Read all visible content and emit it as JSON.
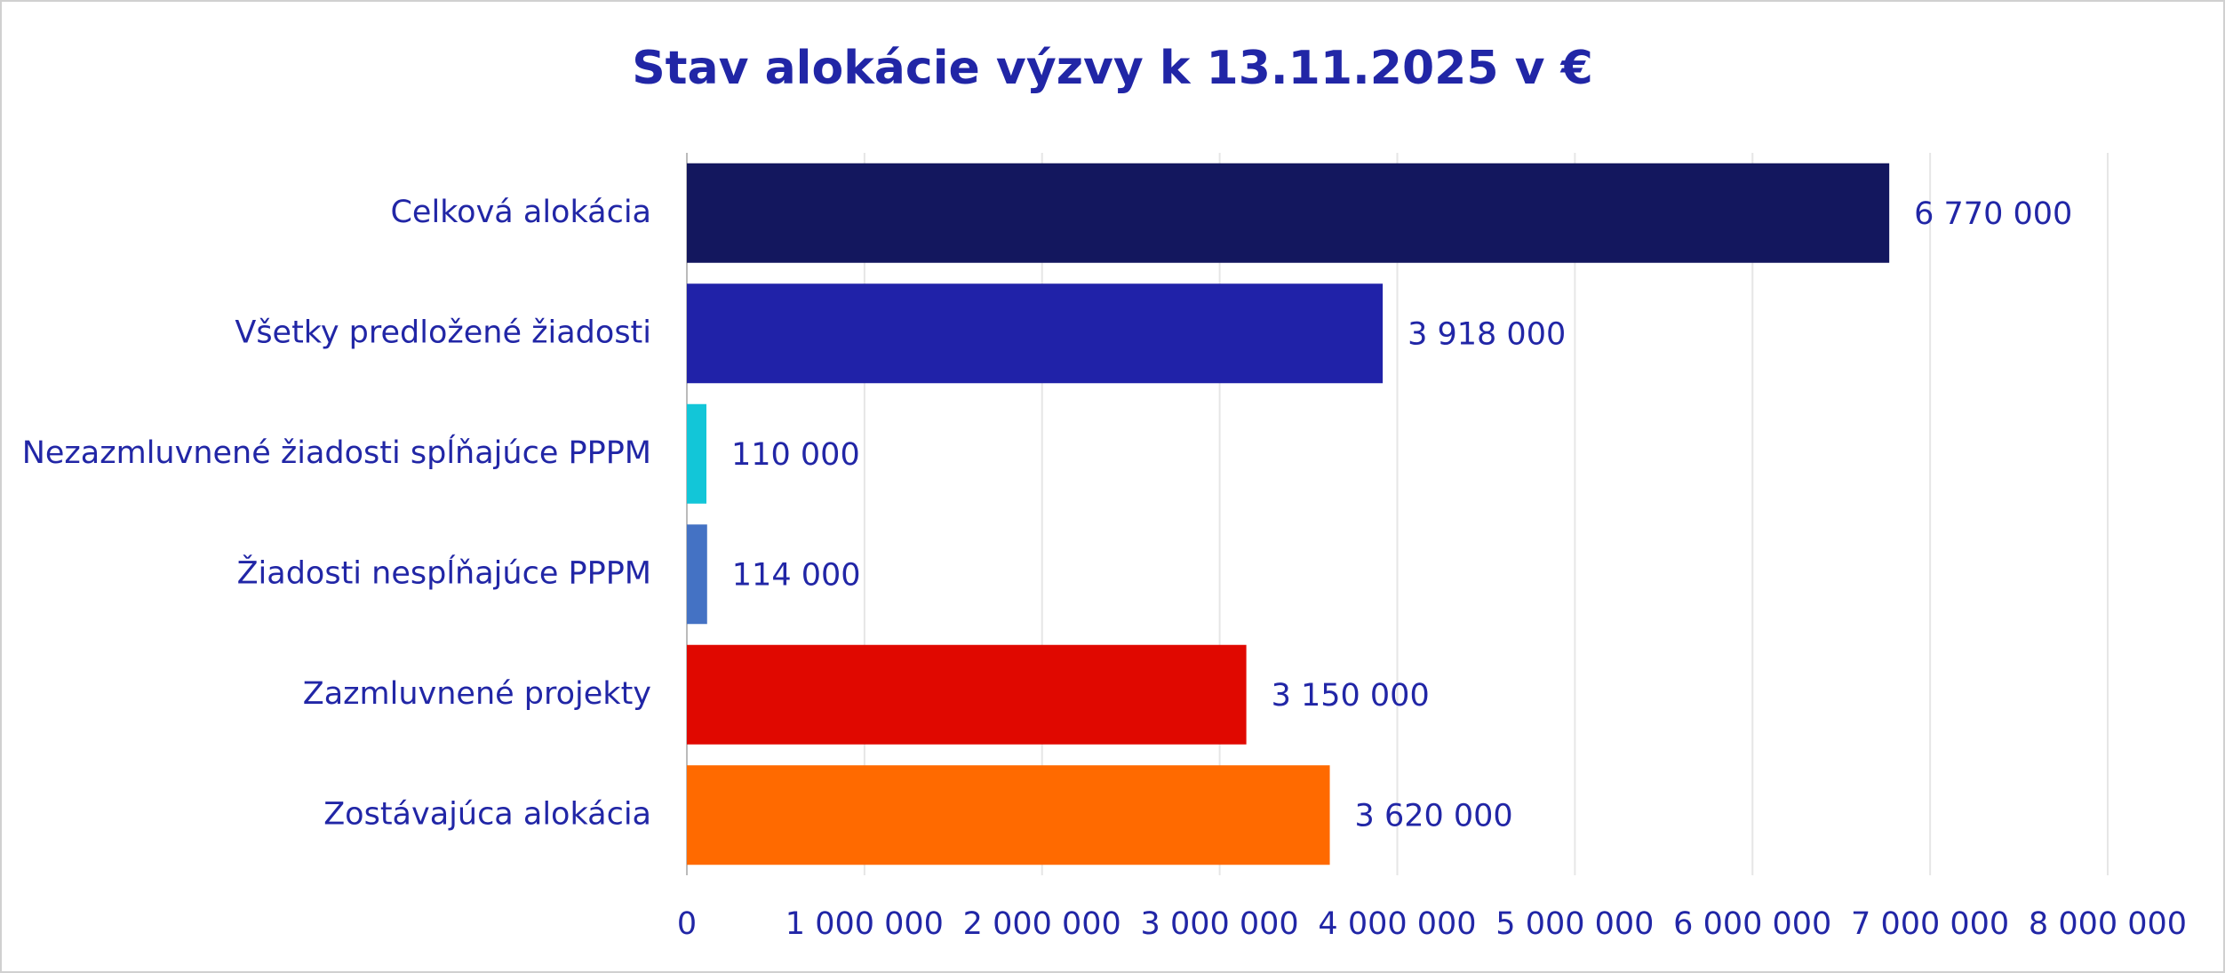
{
  "chart_data": {
    "type": "barh",
    "title": "Stav alokácie výzvy k 13.11.2025 v €",
    "categories": [
      "Celková alokácia",
      "Všetky predložené žiadosti",
      "Nezazmluvnené žiadosti spĺňajúce PPPM",
      "Žiadosti nespĺňajúce PPPM",
      "Zazmluvnené projekty",
      "Zostávajúca alokácia"
    ],
    "values": [
      6770000,
      3918000,
      110000,
      114000,
      3150000,
      3620000
    ],
    "value_labels": [
      "6 770 000",
      "3 918 000",
      "110 000",
      "114 000",
      "3 150 000",
      "3 620 000"
    ],
    "colors": [
      "#13175e",
      "#2022a8",
      "#12c6d8",
      "#4472c4",
      "#e00800",
      "#ff6a00"
    ],
    "xlim": [
      0,
      8000000
    ],
    "xticks": [
      0,
      {
        "value": 1000000,
        "label": "1 000 000"
      },
      {
        "value": 2000000,
        "label": "2 000 000"
      },
      {
        "value": 3000000,
        "label": "3 000 000"
      },
      {
        "value": 4000000,
        "label": "4 000 000"
      },
      {
        "value": 5000000,
        "label": "5 000 000"
      },
      {
        "value": 6000000,
        "label": "6 000 000"
      },
      {
        "value": 7000000,
        "label": "7 000 000"
      },
      {
        "value": 8000000,
        "label": "8 000 000"
      }
    ],
    "grid": true
  }
}
